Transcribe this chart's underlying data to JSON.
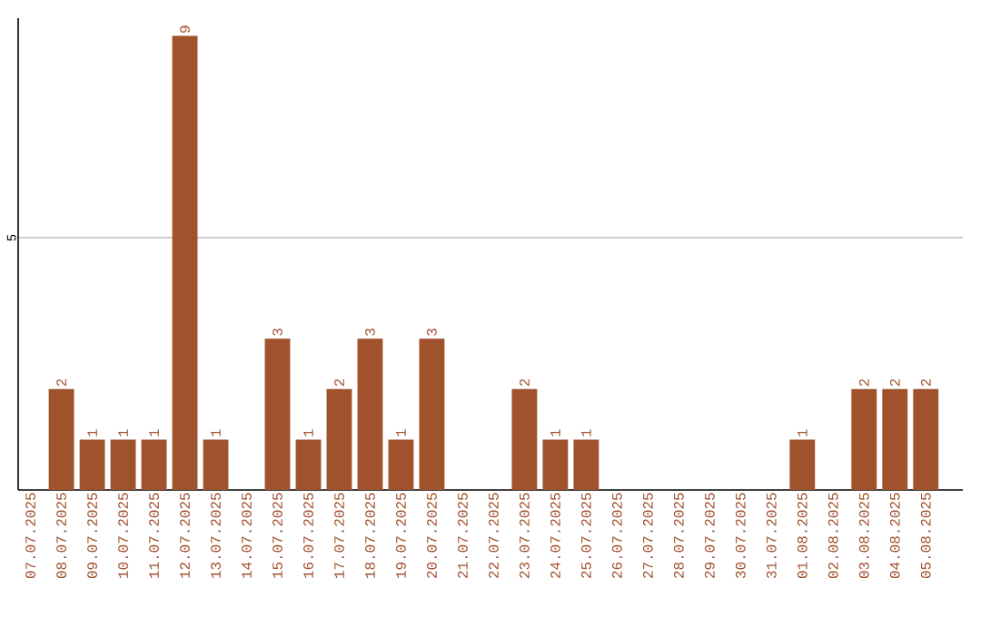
{
  "chart_data": {
    "type": "bar",
    "categories": [
      "07.07.2025",
      "08.07.2025",
      "09.07.2025",
      "10.07.2025",
      "11.07.2025",
      "12.07.2025",
      "13.07.2025",
      "14.07.2025",
      "15.07.2025",
      "16.07.2025",
      "17.07.2025",
      "18.07.2025",
      "19.07.2025",
      "20.07.2025",
      "21.07.2025",
      "22.07.2025",
      "23.07.2025",
      "24.07.2025",
      "25.07.2025",
      "26.07.2025",
      "27.07.2025",
      "28.07.2025",
      "29.07.2025",
      "30.07.2025",
      "31.07.2025",
      "01.08.2025",
      "02.08.2025",
      "03.08.2025",
      "04.08.2025",
      "05.08.2025"
    ],
    "values": [
      0,
      2,
      1,
      1,
      1,
      9,
      1,
      0,
      3,
      1,
      2,
      3,
      1,
      3,
      0,
      0,
      2,
      1,
      1,
      0,
      0,
      0,
      0,
      0,
      0,
      1,
      0,
      2,
      2,
      2
    ],
    "value_labels": [
      null,
      "2",
      "1",
      "1",
      "1",
      "9",
      "1",
      null,
      "3",
      "1",
      "2",
      "3",
      "1",
      "3",
      null,
      null,
      "2",
      "1",
      "1",
      null,
      null,
      null,
      null,
      null,
      null,
      "1",
      null,
      "2",
      "2",
      "2"
    ],
    "color": "#a0522d",
    "ylim": [
      0,
      9.35
    ],
    "yticks": [
      5
    ],
    "grid": "y"
  }
}
